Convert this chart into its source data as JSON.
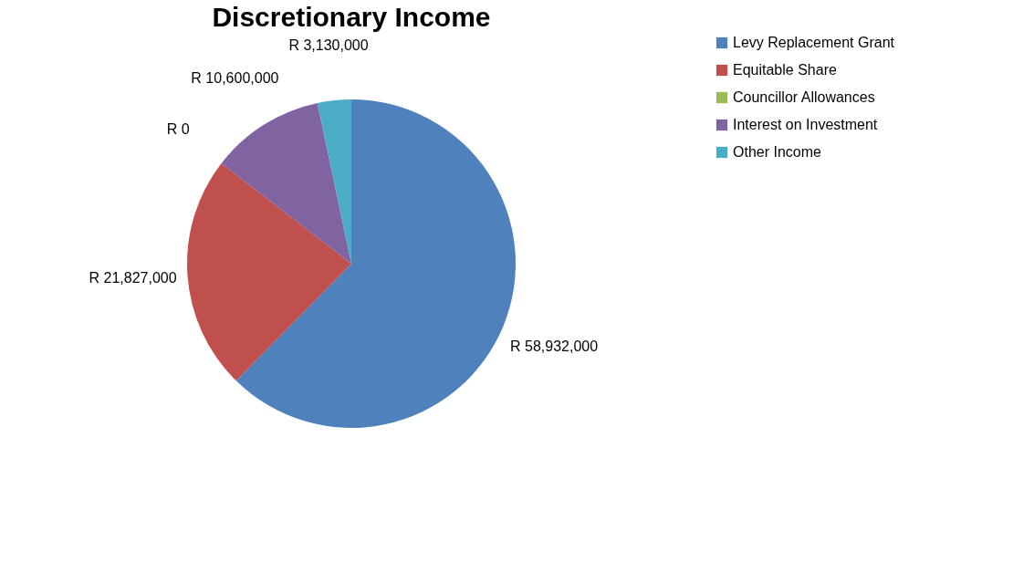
{
  "chart_data": {
    "type": "pie",
    "title": "Discretionary Income",
    "categories": [
      "Levy Replacement Grant",
      "Equitable Share",
      "Councillor Allowances",
      "Interest on Investment",
      "Other Income"
    ],
    "values": [
      58932000,
      21827000,
      0,
      10600000,
      3130000
    ],
    "value_labels": [
      "R 58,932,000",
      "R 21,827,000",
      "R 0",
      "R 10,600,000",
      "R 3,130,000"
    ],
    "colors": [
      "#4f81bd",
      "#c0504d",
      "#9bbb59",
      "#8064a2",
      "#4bacc6"
    ],
    "legend": "right"
  }
}
